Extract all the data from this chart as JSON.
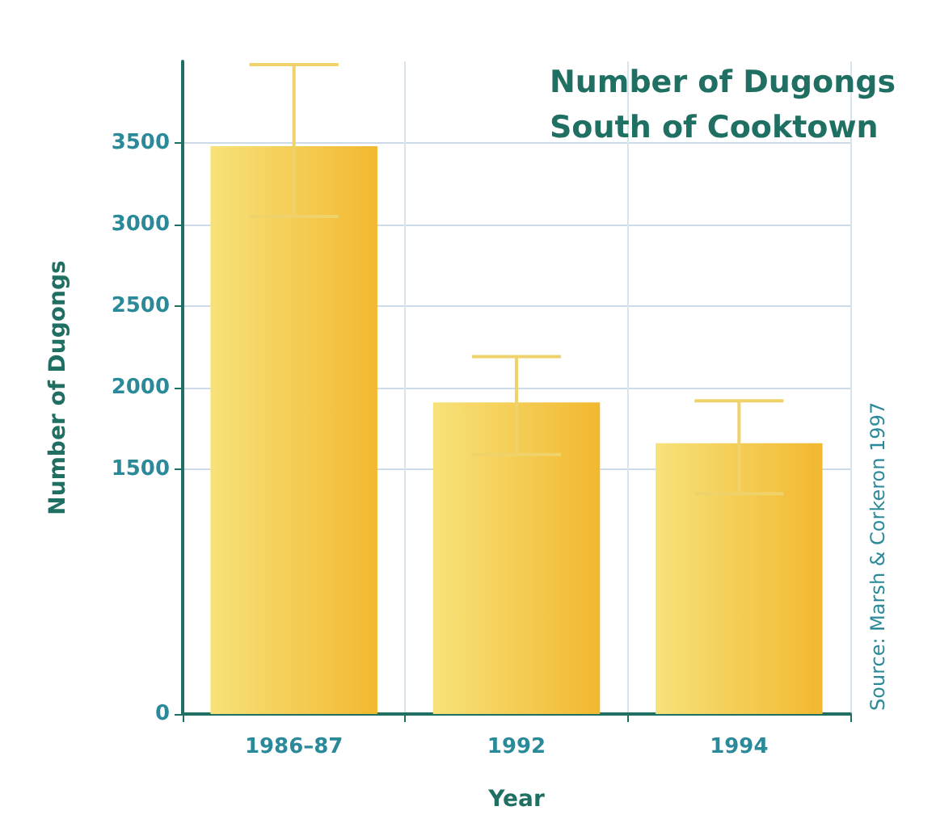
{
  "chart_data": {
    "type": "bar",
    "title": "Number of Dugongs\nSouth of Cooktown",
    "xlabel": "Year",
    "ylabel": "Number of Dugongs",
    "categories": [
      "1986–87",
      "1992",
      "1994"
    ],
    "values": [
      3480,
      1910,
      1660
    ],
    "color": "#f2b830",
    "errors": [
      [
        3050,
        3980
      ],
      [
        1590,
        2190
      ],
      [
        1350,
        1920
      ]
    ],
    "ylim": [
      0,
      4000
    ],
    "yticks": [
      0,
      1500,
      2000,
      2500,
      3000,
      3500
    ],
    "grid": true,
    "annotations": [
      "Source: Marsh & Corkeron 1997"
    ]
  }
}
